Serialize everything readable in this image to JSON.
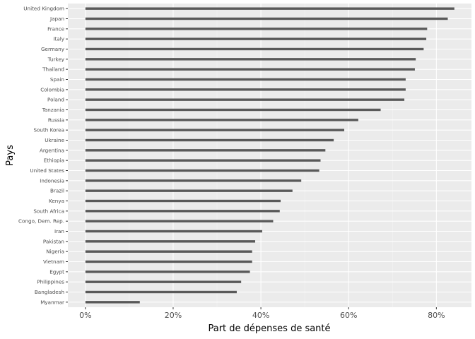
{
  "chart_data": {
    "type": "bar",
    "orientation": "horizontal",
    "xlabel": "Part de dépenses de santé",
    "ylabel": "Pays",
    "xlim": [
      -0.04,
      0.88
    ],
    "x_ticks": [
      0,
      0.2,
      0.4,
      0.6,
      0.8
    ],
    "x_tick_labels": [
      "0%",
      "20%",
      "40%",
      "60%",
      "80%"
    ],
    "grid": true,
    "categories": [
      "United Kingdom",
      "Japan",
      "France",
      "Italy",
      "Germany",
      "Turkey",
      "Thailand",
      "Spain",
      "Colombia",
      "Poland",
      "Tanzania",
      "Russia",
      "South Korea",
      "Ukraine",
      "Argentina",
      "Ethiopia",
      "United States",
      "Indonesia",
      "Brazil",
      "Kenya",
      "South Africa",
      "Congo, Dem. Rep.",
      "Iran",
      "Pakistan",
      "Nigeria",
      "Vietnam",
      "Egypt",
      "Philippines",
      "Bangladesh",
      "Myanmar"
    ],
    "values": [
      0.841,
      0.826,
      0.779,
      0.777,
      0.771,
      0.753,
      0.751,
      0.73,
      0.73,
      0.727,
      0.673,
      0.622,
      0.59,
      0.566,
      0.547,
      0.536,
      0.533,
      0.492,
      0.472,
      0.445,
      0.443,
      0.428,
      0.403,
      0.387,
      0.38,
      0.38,
      0.375,
      0.355,
      0.345,
      0.124
    ],
    "colors": {
      "panel": "#ebebeb",
      "grid_major": "#ffffff",
      "grid_minor": "#f5f5f5",
      "bar": "#595959",
      "tick": "#333333"
    }
  }
}
